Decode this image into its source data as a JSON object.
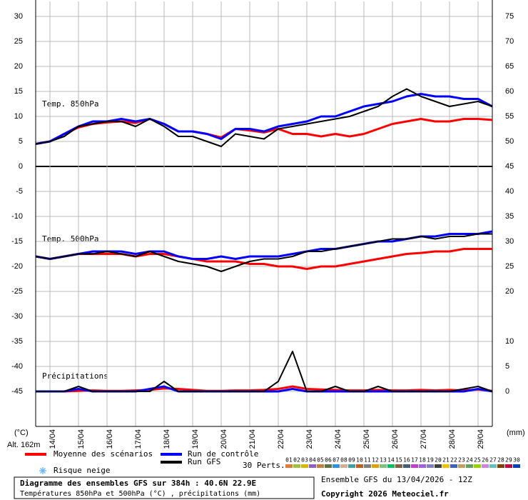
{
  "chart_data": {
    "type": "line",
    "x": [
      0,
      12,
      24,
      36,
      48,
      60,
      72,
      84,
      96,
      108,
      120,
      132,
      144,
      156,
      168,
      180,
      192,
      204,
      216,
      228,
      240,
      252,
      264,
      276,
      288,
      300,
      312,
      324,
      336,
      348,
      360,
      372,
      384
    ],
    "xlim": [
      0,
      384
    ],
    "xticks": [
      {
        "value": 12,
        "label": "14/04"
      },
      {
        "value": 36,
        "label": "15/04"
      },
      {
        "value": 60,
        "label": "16/04"
      },
      {
        "value": 84,
        "label": "17/04"
      },
      {
        "value": 108,
        "label": "18/04"
      },
      {
        "value": 132,
        "label": "19/04"
      },
      {
        "value": 156,
        "label": "20/04"
      },
      {
        "value": 180,
        "label": "21/04"
      },
      {
        "value": 204,
        "label": "22/04"
      },
      {
        "value": 228,
        "label": "23/04"
      },
      {
        "value": 252,
        "label": "24/04"
      },
      {
        "value": 276,
        "label": "25/04"
      },
      {
        "value": 300,
        "label": "26/04"
      },
      {
        "value": 324,
        "label": "27/04"
      },
      {
        "value": 348,
        "label": "28/04"
      },
      {
        "value": 372,
        "label": "29/04"
      }
    ],
    "ylim": [
      -52,
      33
    ],
    "yticks": [
      30,
      25,
      20,
      15,
      10,
      5,
      0,
      -5,
      -10,
      -15,
      -20,
      -25,
      -30,
      -35,
      -40,
      -45
    ],
    "y2lim": [
      -7,
      78
    ],
    "y2ticks": [
      75,
      70,
      65,
      60,
      55,
      50,
      45,
      40,
      35,
      30,
      25,
      20,
      10,
      5,
      0
    ],
    "ylabel": "(°C)",
    "y2label": "(mm)",
    "altitude": "Alt. 162m",
    "grid": true,
    "panel_labels": {
      "t850": "Temp. 850hPa",
      "t500": "Temp. 500hPa",
      "precip": "Précipitations"
    },
    "series": [
      {
        "name": "Moyenne des scénarios",
        "color": "#ff0000",
        "t850": [
          4.5,
          5,
          6.5,
          7.8,
          8.5,
          8.8,
          9,
          8.7,
          9.5,
          8.5,
          7,
          7,
          6.5,
          5.8,
          7.5,
          7.2,
          6.8,
          7.5,
          6.5,
          6.5,
          6,
          6.5,
          6,
          6.5,
          7.5,
          8.5,
          9,
          9.5,
          9,
          9,
          9.5,
          9.5,
          9.3
        ],
        "t500": [
          -18,
          -18.5,
          -18,
          -17.5,
          -17.5,
          -17.5,
          -17.5,
          -18,
          -17.5,
          -17.5,
          -18,
          -18.5,
          -19,
          -19,
          -19,
          -19.5,
          -19.5,
          -20,
          -20,
          -20.5,
          -20,
          -20,
          -19.5,
          -19,
          -18.5,
          -18,
          -17.5,
          -17.3,
          -17,
          -17,
          -16.5,
          -16.5,
          -16.5
        ],
        "precip": [
          0,
          0,
          0,
          0.1,
          0.2,
          0.1,
          0.1,
          0.2,
          0.3,
          0.6,
          0.5,
          0.3,
          0.1,
          0.1,
          0.2,
          0.2,
          0.3,
          0.5,
          1,
          0.5,
          0.4,
          0.3,
          0.2,
          0.2,
          0.3,
          0.2,
          0.2,
          0.3,
          0.2,
          0.3,
          0.2,
          0.4,
          0.1
        ]
      },
      {
        "name": "Run de contrôle",
        "color": "#0000ff",
        "t850": [
          4.5,
          5,
          6.5,
          8,
          9,
          9,
          9.5,
          9,
          9.5,
          8.5,
          7,
          7,
          6.5,
          5.5,
          7.5,
          7.5,
          7,
          8,
          8.5,
          9,
          10,
          10,
          11,
          12,
          12.5,
          13,
          14,
          14.5,
          14,
          14,
          13.5,
          13.5,
          12
        ],
        "t500": [
          -18,
          -18.5,
          -18,
          -17.5,
          -17,
          -17,
          -17,
          -17.5,
          -17,
          -17,
          -18,
          -18.5,
          -18.5,
          -18,
          -18.5,
          -18,
          -18,
          -18,
          -17.5,
          -17,
          -16.5,
          -16.5,
          -16,
          -15.5,
          -15,
          -15,
          -14.5,
          -14,
          -14,
          -13.5,
          -13.5,
          -13.5,
          -13
        ],
        "precip": [
          0,
          0,
          0,
          0.5,
          0,
          0,
          0,
          0,
          0.5,
          1,
          0,
          0,
          0,
          0,
          0,
          0,
          0,
          0,
          0.5,
          0,
          0,
          0,
          0,
          0,
          0,
          0,
          0,
          0,
          0,
          0,
          0,
          0.5,
          0
        ]
      },
      {
        "name": "Run GFS",
        "color": "#000000",
        "t850": [
          4.5,
          5,
          6,
          8,
          8.5,
          9,
          9,
          8,
          9.5,
          8,
          6,
          6,
          5,
          4,
          6.5,
          6,
          5.5,
          7.5,
          8,
          8.5,
          9,
          9.5,
          10,
          11,
          12,
          14,
          15.5,
          14,
          13,
          12,
          12.5,
          13,
          12
        ],
        "t500": [
          -18,
          -18.5,
          -18,
          -17.5,
          -17.5,
          -17,
          -17.5,
          -18,
          -17,
          -18,
          -19,
          -19.5,
          -20,
          -21,
          -20,
          -19,
          -18.5,
          -18.5,
          -18,
          -17,
          -17,
          -16.5,
          -16,
          -15.5,
          -15,
          -14.5,
          -14.5,
          -14,
          -14.5,
          -14,
          -14,
          -13.5,
          -13.5
        ],
        "precip": [
          0,
          0,
          0,
          1,
          0,
          0,
          0,
          0,
          0,
          2,
          0,
          0,
          0,
          0,
          0,
          0,
          0,
          2,
          8,
          0,
          0,
          1,
          0,
          0,
          1,
          0,
          0,
          0,
          0,
          0,
          0.5,
          1,
          0
        ]
      }
    ],
    "snow_label": "Risque neige",
    "perturbations_label": "30 Perts.",
    "perturbations": [
      {
        "name": "01",
        "color": "#e07b39"
      },
      {
        "name": "02",
        "color": "#a0c040"
      },
      {
        "name": "03",
        "color": "#d4b800"
      },
      {
        "name": "04",
        "color": "#9060c0"
      },
      {
        "name": "05",
        "color": "#c08040"
      },
      {
        "name": "06",
        "color": "#607040"
      },
      {
        "name": "07",
        "color": "#3090e0"
      },
      {
        "name": "08",
        "color": "#d0b090"
      },
      {
        "name": "09",
        "color": "#40a0a0"
      },
      {
        "name": "10",
        "color": "#c06020"
      },
      {
        "name": "11",
        "color": "#808080"
      },
      {
        "name": "12",
        "color": "#e0a000"
      },
      {
        "name": "13",
        "color": "#80c080"
      },
      {
        "name": "14",
        "color": "#00c060"
      },
      {
        "name": "15",
        "color": "#806040"
      },
      {
        "name": "16",
        "color": "#406080"
      },
      {
        "name": "17",
        "color": "#c040c0"
      },
      {
        "name": "18",
        "color": "#a060e0"
      },
      {
        "name": "19",
        "color": "#8080c0"
      },
      {
        "name": "20",
        "color": "#404040"
      },
      {
        "name": "21",
        "color": "#f0c000"
      },
      {
        "name": "22",
        "color": "#4060c0"
      },
      {
        "name": "23",
        "color": "#c0a060"
      },
      {
        "name": "24",
        "color": "#60a060"
      },
      {
        "name": "25",
        "color": "#a0d000"
      },
      {
        "name": "26",
        "color": "#d080e0"
      },
      {
        "name": "27",
        "color": "#60c0c0"
      },
      {
        "name": "28",
        "color": "#804000"
      },
      {
        "name": "29",
        "color": "#c00040"
      },
      {
        "name": "30",
        "color": "#0040c0"
      }
    ],
    "title": "Diagramme des ensembles GFS sur 384h : 40.6N 22.9E",
    "subtitle": "Températures 850hPa et 500hPa (°C) , précipitations (mm)",
    "run_info": "Ensemble GFS du 13/04/2026 - 12Z",
    "copyright": "Copyright 2026 Meteociel.fr"
  }
}
